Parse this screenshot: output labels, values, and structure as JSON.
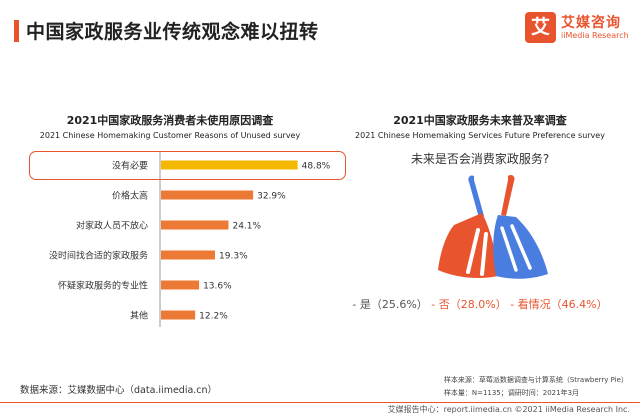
{
  "header": {
    "title": "中国家政服务业传统观念难以扭转"
  },
  "logo": {
    "mark": "艾",
    "name": "艾媒咨询",
    "sub": "iiMedia Research"
  },
  "left_chart": {
    "title_cn": "2021中国家政服务消费者未使用原因调查",
    "title_en": "2021 Chinese Homemaking Customer Reasons of Unused survey"
  },
  "right_chart": {
    "title_cn": "2021中国家政服务未来普及率调查",
    "title_en": "2021 Chinese Homemaking Services Future Preference survey",
    "question": "未来是否会消费家政服务?",
    "options": {
      "yes": "- 是（25.6%）",
      "no": " - 否（28.0%）",
      "maybe": " - 看情况（46.4%）"
    }
  },
  "chart_data": [
    {
      "type": "bar",
      "orientation": "horizontal",
      "title": "2021中国家政服务消费者未使用原因调查",
      "categories": [
        "没有必要",
        "价格太高",
        "对家政人员不放心",
        "没时间找合适的家政服务",
        "怀疑家政服务的专业性",
        "其他"
      ],
      "values": [
        48.8,
        32.9,
        24.1,
        19.3,
        13.6,
        12.2
      ],
      "value_labels": [
        "48.8%",
        "32.9%",
        "24.1%",
        "19.3%",
        "13.6%",
        "12.2%"
      ],
      "highlight_index": 0,
      "colors": {
        "highlight": "#f5b800",
        "default": "#ec7a35"
      },
      "xlim": [
        0,
        50
      ],
      "grid": false
    },
    {
      "type": "pie",
      "title": "2021中国家政服务未来普及率调查",
      "categories": [
        "是",
        "否",
        "看情况"
      ],
      "values": [
        25.6,
        28.0,
        46.4
      ]
    }
  ],
  "footer": {
    "source": "数据来源：艾媒数据中心（data.iimedia.cn）",
    "sample_source": "样本来源：草莓派数据调查与计算系统（Strawberry Pie）",
    "sample_size": "样本量：N=1135；调研时间：2021年3月",
    "report": "艾媒报告中心：report.iimedia.cn  ©2021  iiMedia Research  Inc."
  },
  "colors": {
    "accent": "#e8542e",
    "broom_red": "#e8542e",
    "broom_blue": "#4a7de0"
  }
}
